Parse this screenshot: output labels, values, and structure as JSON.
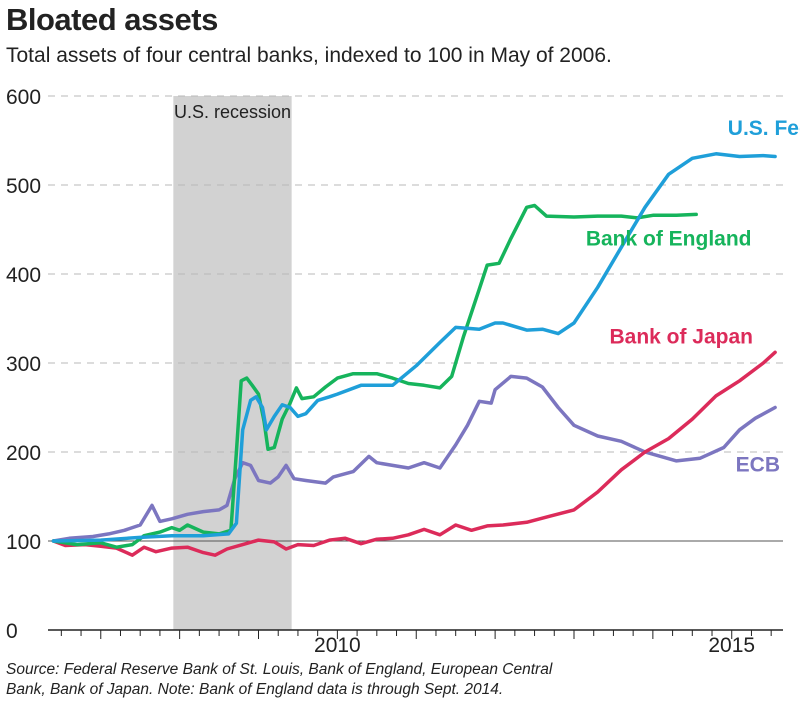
{
  "title": "Bloated assets",
  "subtitle": "Total assets of four central banks, indexed to 100 in May of 2006.",
  "source": "Source: Federal Reserve Bank of St. Louis, Bank of England, European Central Bank, Bank of Japan. Note: Bank of England data is through Sept. 2014.",
  "source_line1": "Source: Federal Reserve Bank of St. Louis, Bank of England, European Central",
  "source_line2": "Bank, Bank of Japan. Note: Bank of England data is through Sept. 2014.",
  "chart_data": {
    "type": "line",
    "title": "Bloated assets",
    "subtitle": "Total assets of four central banks, indexed to 100 in May of 2006.",
    "xlabel": "",
    "ylabel": "",
    "xlim": [
      2006.35,
      2015.65
    ],
    "ylim": [
      0,
      600
    ],
    "y_ticks": [
      0,
      100,
      200,
      300,
      400,
      500,
      600
    ],
    "x_ticks": [
      2010,
      2015
    ],
    "grid": "horizontal dashed",
    "shaded_region": {
      "label": "U.S. recession",
      "start": 2007.92,
      "end": 2009.42,
      "color": "#d2d2d2"
    },
    "series": [
      {
        "name": "U.S. Fed",
        "color": "#1f9fd9",
        "points": [
          [
            2006.4,
            100
          ],
          [
            2007.0,
            101
          ],
          [
            2007.5,
            104
          ],
          [
            2007.9,
            106
          ],
          [
            2008.3,
            106
          ],
          [
            2008.62,
            108
          ],
          [
            2008.72,
            120
          ],
          [
            2008.8,
            225
          ],
          [
            2008.9,
            258
          ],
          [
            2008.97,
            262
          ],
          [
            2009.05,
            250
          ],
          [
            2009.1,
            225
          ],
          [
            2009.2,
            240
          ],
          [
            2009.3,
            253
          ],
          [
            2009.4,
            250
          ],
          [
            2009.5,
            240
          ],
          [
            2009.6,
            243
          ],
          [
            2009.75,
            258
          ],
          [
            2009.9,
            262
          ],
          [
            2010.0,
            265
          ],
          [
            2010.3,
            275
          ],
          [
            2010.7,
            275
          ],
          [
            2011.0,
            297
          ],
          [
            2011.3,
            323
          ],
          [
            2011.5,
            340
          ],
          [
            2011.8,
            338
          ],
          [
            2012.0,
            345
          ],
          [
            2012.1,
            345
          ],
          [
            2012.4,
            337
          ],
          [
            2012.6,
            338
          ],
          [
            2012.8,
            333
          ],
          [
            2013.0,
            345
          ],
          [
            2013.3,
            385
          ],
          [
            2013.6,
            430
          ],
          [
            2013.9,
            475
          ],
          [
            2014.2,
            512
          ],
          [
            2014.5,
            530
          ],
          [
            2014.8,
            535
          ],
          [
            2015.1,
            532
          ],
          [
            2015.4,
            533
          ],
          [
            2015.55,
            532
          ]
        ]
      },
      {
        "name": "Bank of England",
        "color": "#16b45c",
        "points": [
          [
            2006.4,
            100
          ],
          [
            2006.7,
            96
          ],
          [
            2007.0,
            98
          ],
          [
            2007.2,
            93
          ],
          [
            2007.4,
            96
          ],
          [
            2007.55,
            106
          ],
          [
            2007.75,
            110
          ],
          [
            2007.9,
            115
          ],
          [
            2008.0,
            112
          ],
          [
            2008.1,
            118
          ],
          [
            2008.3,
            110
          ],
          [
            2008.5,
            108
          ],
          [
            2008.65,
            112
          ],
          [
            2008.72,
            200
          ],
          [
            2008.78,
            280
          ],
          [
            2008.85,
            283
          ],
          [
            2008.92,
            275
          ],
          [
            2009.0,
            265
          ],
          [
            2009.07,
            235
          ],
          [
            2009.12,
            203
          ],
          [
            2009.2,
            205
          ],
          [
            2009.3,
            237
          ],
          [
            2009.4,
            255
          ],
          [
            2009.48,
            272
          ],
          [
            2009.55,
            260
          ],
          [
            2009.7,
            262
          ],
          [
            2009.85,
            273
          ],
          [
            2010.0,
            283
          ],
          [
            2010.2,
            288
          ],
          [
            2010.5,
            288
          ],
          [
            2010.7,
            283
          ],
          [
            2010.9,
            277
          ],
          [
            2011.1,
            275
          ],
          [
            2011.3,
            272
          ],
          [
            2011.45,
            285
          ],
          [
            2011.6,
            330
          ],
          [
            2011.8,
            383
          ],
          [
            2011.9,
            410
          ],
          [
            2012.05,
            412
          ],
          [
            2012.2,
            440
          ],
          [
            2012.4,
            475
          ],
          [
            2012.5,
            477
          ],
          [
            2012.65,
            465
          ],
          [
            2013.0,
            464
          ],
          [
            2013.3,
            465
          ],
          [
            2013.6,
            465
          ],
          [
            2013.8,
            463
          ],
          [
            2014.0,
            466
          ],
          [
            2014.3,
            466
          ],
          [
            2014.55,
            467
          ]
        ]
      },
      {
        "name": "Bank of Japan",
        "color": "#dc2b5a",
        "points": [
          [
            2006.4,
            100
          ],
          [
            2006.55,
            95
          ],
          [
            2006.8,
            96
          ],
          [
            2007.0,
            94
          ],
          [
            2007.2,
            92
          ],
          [
            2007.4,
            84
          ],
          [
            2007.55,
            93
          ],
          [
            2007.7,
            88
          ],
          [
            2007.9,
            92
          ],
          [
            2008.1,
            93
          ],
          [
            2008.3,
            87
          ],
          [
            2008.45,
            84
          ],
          [
            2008.6,
            91
          ],
          [
            2008.8,
            96
          ],
          [
            2009.0,
            101
          ],
          [
            2009.2,
            99
          ],
          [
            2009.35,
            91
          ],
          [
            2009.5,
            96
          ],
          [
            2009.7,
            95
          ],
          [
            2009.9,
            101
          ],
          [
            2010.1,
            103
          ],
          [
            2010.3,
            97
          ],
          [
            2010.5,
            102
          ],
          [
            2010.7,
            103
          ],
          [
            2010.9,
            107
          ],
          [
            2011.1,
            113
          ],
          [
            2011.3,
            107
          ],
          [
            2011.5,
            118
          ],
          [
            2011.7,
            112
          ],
          [
            2011.9,
            117
          ],
          [
            2012.1,
            118
          ],
          [
            2012.4,
            121
          ],
          [
            2012.7,
            128
          ],
          [
            2013.0,
            135
          ],
          [
            2013.3,
            155
          ],
          [
            2013.6,
            180
          ],
          [
            2013.9,
            200
          ],
          [
            2014.2,
            215
          ],
          [
            2014.5,
            237
          ],
          [
            2014.8,
            263
          ],
          [
            2015.1,
            280
          ],
          [
            2015.4,
            300
          ],
          [
            2015.55,
            312
          ]
        ]
      },
      {
        "name": "ECB",
        "color": "#7c76c0",
        "points": [
          [
            2006.4,
            100
          ],
          [
            2006.6,
            103
          ],
          [
            2006.9,
            105
          ],
          [
            2007.1,
            108
          ],
          [
            2007.3,
            112
          ],
          [
            2007.5,
            118
          ],
          [
            2007.65,
            140
          ],
          [
            2007.75,
            122
          ],
          [
            2007.9,
            125
          ],
          [
            2008.1,
            130
          ],
          [
            2008.3,
            133
          ],
          [
            2008.5,
            135
          ],
          [
            2008.6,
            140
          ],
          [
            2008.7,
            170
          ],
          [
            2008.8,
            188
          ],
          [
            2008.9,
            185
          ],
          [
            2009.0,
            168
          ],
          [
            2009.15,
            165
          ],
          [
            2009.25,
            172
          ],
          [
            2009.35,
            185
          ],
          [
            2009.45,
            170
          ],
          [
            2009.6,
            168
          ],
          [
            2009.85,
            165
          ],
          [
            2009.95,
            172
          ],
          [
            2010.2,
            178
          ],
          [
            2010.4,
            195
          ],
          [
            2010.5,
            188
          ],
          [
            2010.7,
            185
          ],
          [
            2010.9,
            182
          ],
          [
            2011.1,
            188
          ],
          [
            2011.3,
            182
          ],
          [
            2011.5,
            208
          ],
          [
            2011.65,
            230
          ],
          [
            2011.8,
            257
          ],
          [
            2011.95,
            255
          ],
          [
            2012.0,
            270
          ],
          [
            2012.2,
            285
          ],
          [
            2012.4,
            283
          ],
          [
            2012.6,
            273
          ],
          [
            2012.8,
            250
          ],
          [
            2013.0,
            230
          ],
          [
            2013.3,
            218
          ],
          [
            2013.6,
            212
          ],
          [
            2013.9,
            200
          ],
          [
            2014.1,
            195
          ],
          [
            2014.3,
            190
          ],
          [
            2014.6,
            193
          ],
          [
            2014.9,
            205
          ],
          [
            2015.1,
            225
          ],
          [
            2015.3,
            238
          ],
          [
            2015.55,
            250
          ]
        ]
      }
    ],
    "labels": [
      {
        "series": "U.S. Fed",
        "text": "U.S. Fed",
        "x": 2014.95,
        "y": 556
      },
      {
        "series": "Bank of England",
        "text": "Bank of England",
        "x": 2013.15,
        "y": 432
      },
      {
        "series": "Bank of Japan",
        "text": "Bank of Japan",
        "x": 2013.45,
        "y": 322
      },
      {
        "series": "ECB",
        "text": "ECB",
        "x": 2015.05,
        "y": 178
      }
    ]
  }
}
